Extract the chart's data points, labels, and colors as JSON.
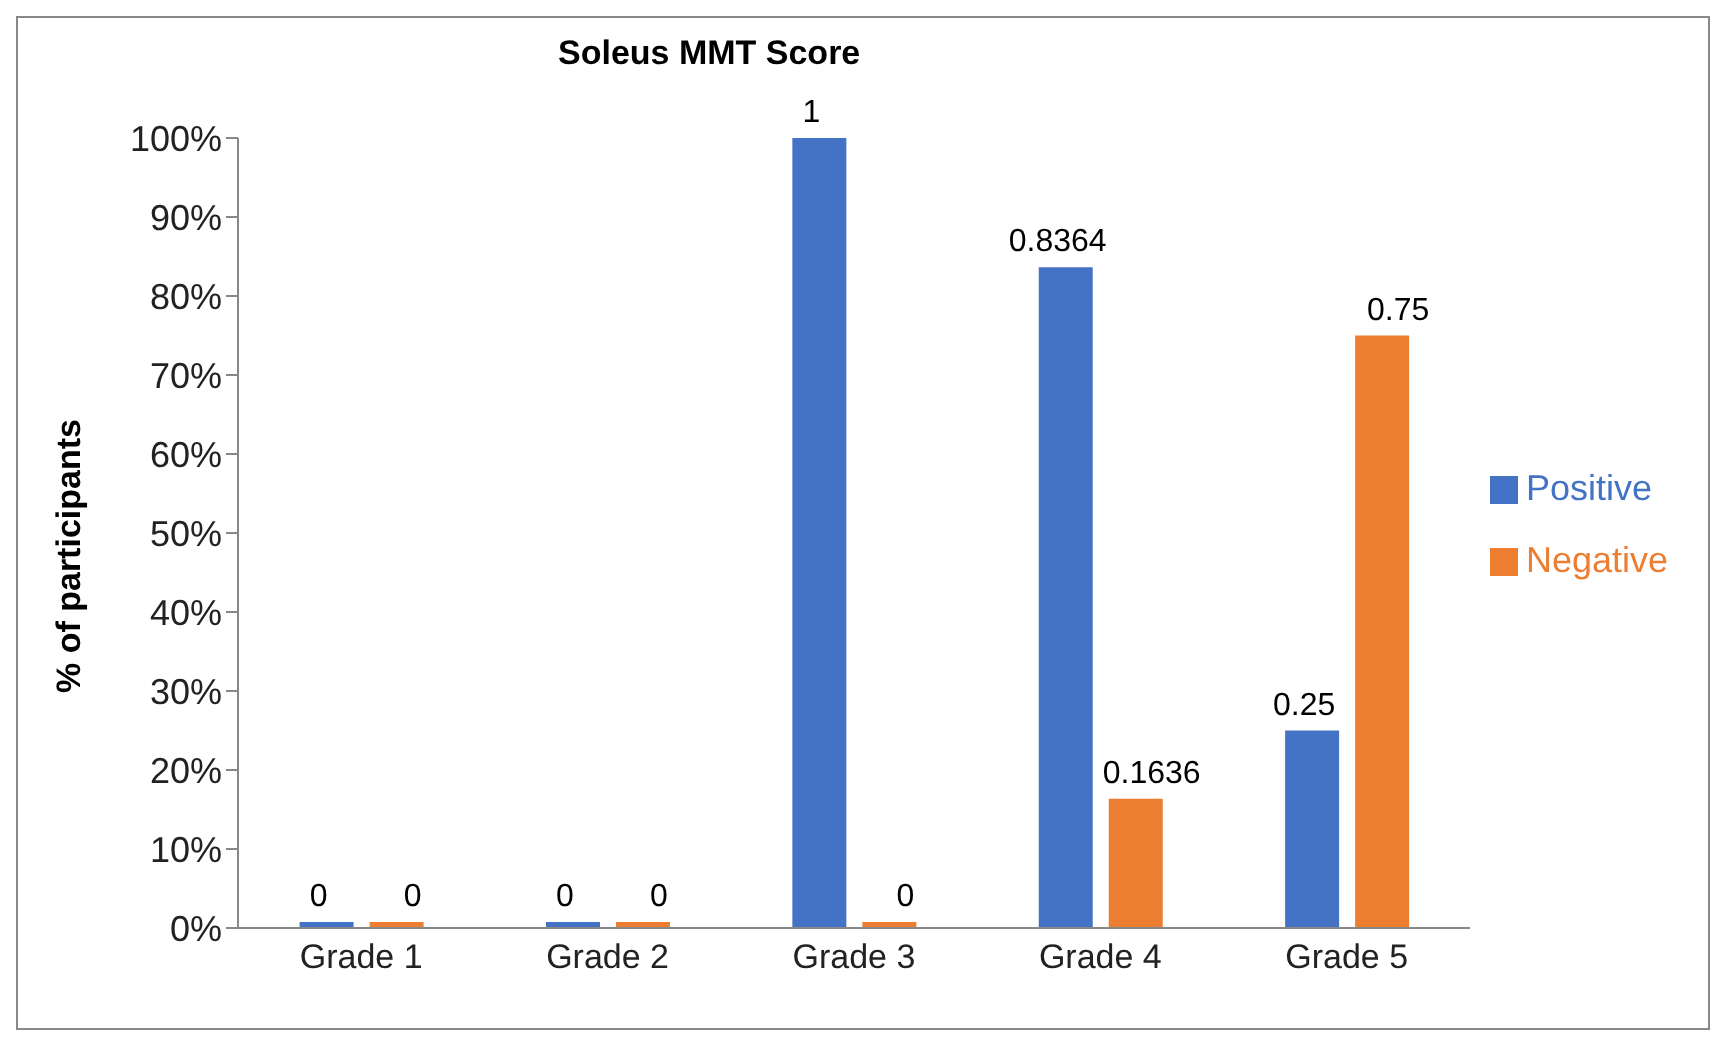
{
  "chart_data": {
    "type": "bar",
    "title": "Soleus MMT Score",
    "ylabel": "% of participants",
    "categories": [
      "Grade 1",
      "Grade 2",
      "Grade 3",
      "Grade 4",
      "Grade 5"
    ],
    "series": [
      {
        "name": "Positive",
        "color": "#4472c4",
        "values": [
          0,
          0,
          1,
          0.8364,
          0.25
        ]
      },
      {
        "name": "Negative",
        "color": "#ed7d31",
        "values": [
          0,
          0,
          0,
          0.1636,
          0.75
        ]
      }
    ],
    "ylim": [
      0,
      1
    ],
    "yticks": [
      {
        "value": 0,
        "label": "0%"
      },
      {
        "value": 0.1,
        "label": "10%"
      },
      {
        "value": 0.2,
        "label": "20%"
      },
      {
        "value": 0.3,
        "label": "30%"
      },
      {
        "value": 0.4,
        "label": "40%"
      },
      {
        "value": 0.5,
        "label": "50%"
      },
      {
        "value": 0.6,
        "label": "60%"
      },
      {
        "value": 0.7,
        "label": "70%"
      },
      {
        "value": 0.8,
        "label": "80%"
      },
      {
        "value": 0.9,
        "label": "90%"
      },
      {
        "value": 1,
        "label": "100%"
      }
    ],
    "grid": false,
    "legend": "right",
    "data_labels": true
  }
}
